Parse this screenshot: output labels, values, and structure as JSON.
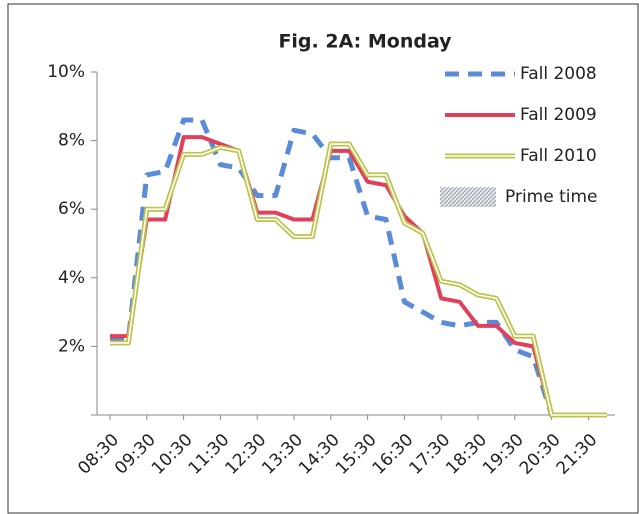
{
  "chart_data": {
    "type": "line",
    "title": "Fig. 2A: Monday",
    "categories": [
      "08:30",
      null,
      "09:30",
      null,
      "10:30",
      null,
      "11:30",
      null,
      "12:30",
      null,
      "13:30",
      null,
      "14:30",
      null,
      "15:30",
      null,
      "16:30",
      null,
      "17:30",
      null,
      "18:30",
      null,
      "19:30",
      null,
      "20:30",
      null,
      "21:30",
      null
    ],
    "series": [
      {
        "name": "Fall 2008",
        "color": "#5b8bd6",
        "style": "dashed",
        "values": [
          2.2,
          2.2,
          7.0,
          7.1,
          8.6,
          8.6,
          7.3,
          7.2,
          6.4,
          6.4,
          8.3,
          8.2,
          7.5,
          7.5,
          5.8,
          5.7,
          3.3,
          3.0,
          2.7,
          2.6,
          2.7,
          2.7,
          1.9,
          1.7,
          0,
          0,
          0,
          0
        ]
      },
      {
        "name": "Fall 2009",
        "color": "#e0405a",
        "style": "solid",
        "values": [
          2.3,
          2.3,
          5.7,
          5.7,
          8.1,
          8.1,
          7.9,
          7.7,
          5.9,
          5.9,
          5.7,
          5.7,
          7.7,
          7.7,
          6.8,
          6.7,
          5.8,
          5.3,
          3.4,
          3.3,
          2.6,
          2.6,
          2.1,
          2.0,
          0,
          0,
          0,
          0
        ]
      },
      {
        "name": "Fall 2010",
        "color": "#bcc24a",
        "style": "double",
        "values": [
          2.1,
          2.1,
          6.0,
          6.0,
          7.6,
          7.6,
          7.8,
          7.7,
          5.7,
          5.7,
          5.2,
          5.2,
          7.9,
          7.9,
          7.0,
          7.0,
          5.6,
          5.3,
          3.9,
          3.8,
          3.5,
          3.4,
          2.3,
          2.3,
          0,
          0,
          0,
          0
        ]
      }
    ],
    "shaded_region": {
      "name": "Prime time",
      "color": "#c8ccd4"
    },
    "ylim": [
      0,
      10
    ],
    "yticks": [
      {
        "value": 2,
        "label": "2%"
      },
      {
        "value": 4,
        "label": "4%"
      },
      {
        "value": 6,
        "label": "6%"
      },
      {
        "value": 8,
        "label": "8%"
      },
      {
        "value": 10,
        "label": "10%"
      }
    ]
  }
}
